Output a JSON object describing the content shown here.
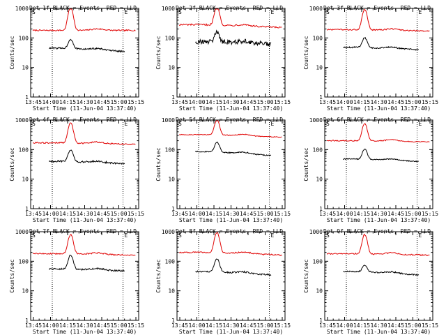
{
  "chart_data": [
    {
      "type": "line",
      "title": "Det 1f BLACK = Events, RED = LLD",
      "xlabel": "Start Time (11-Jun-04 13:37:40)",
      "ylabel": "Counts/sec",
      "yscale": "log",
      "ylim": [
        1,
        1000
      ],
      "xticks": [
        "13:45",
        "14:00",
        "14:15",
        "14:30",
        "14:45",
        "15:00",
        "15:15"
      ],
      "yticks": [
        "1",
        "10",
        "100",
        "1000"
      ],
      "markers": [
        "S",
        "E"
      ],
      "series": [
        {
          "name": "LLD",
          "color": "#e00000",
          "base": 180,
          "peak": 1050,
          "tail": 180,
          "noise": 0.05
        },
        {
          "name": "Events",
          "color": "#000000",
          "base": 45,
          "peak": 90,
          "tail": 32,
          "noise": 0.06
        }
      ]
    },
    {
      "type": "line",
      "title": "Det 2f BLACK = Events, RED = LLD",
      "xlabel": "Start Time (11-Jun-04 13:37:40)",
      "ylabel": "Counts/sec",
      "yscale": "log",
      "ylim": [
        1,
        1000
      ],
      "xticks": [
        "13:45",
        "14:00",
        "14:15",
        "14:30",
        "14:45",
        "15:00",
        "15:15"
      ],
      "yticks": [
        "1",
        "10",
        "100",
        "1000"
      ],
      "markers": [
        "S",
        "E"
      ],
      "series": [
        {
          "name": "LLD",
          "color": "#e00000",
          "base": 280,
          "peak": 1100,
          "tail": 220,
          "noise": 0.07
        },
        {
          "name": "Events",
          "color": "#000000",
          "base": 75,
          "peak": 160,
          "tail": 60,
          "noise": 0.18
        }
      ]
    },
    {
      "type": "line",
      "title": "Det 3f BLACK = Events, RED = LLD",
      "xlabel": "Start Time (11-Jun-04 13:37:40)",
      "ylabel": "Counts/sec",
      "yscale": "log",
      "ylim": [
        1,
        1000
      ],
      "xticks": [
        "13:45",
        "14:00",
        "14:15",
        "14:30",
        "14:45",
        "15:00",
        "15:15"
      ],
      "yticks": [
        "1",
        "10",
        "100",
        "1000"
      ],
      "markers": [
        "S",
        "E"
      ],
      "series": [
        {
          "name": "LLD",
          "color": "#e00000",
          "base": 190,
          "peak": 900,
          "tail": 170,
          "noise": 0.05
        },
        {
          "name": "Events",
          "color": "#000000",
          "base": 48,
          "peak": 100,
          "tail": 38,
          "noise": 0.05
        }
      ]
    },
    {
      "type": "line",
      "title": "Det 4f BLACK = Events, RED = LLD",
      "xlabel": "Start Time (11-Jun-04 13:37:40)",
      "ylabel": "Counts/sec",
      "yscale": "log",
      "ylim": [
        1,
        1000
      ],
      "xticks": [
        "13:45",
        "14:00",
        "14:15",
        "14:30",
        "14:45",
        "15:00",
        "15:15"
      ],
      "yticks": [
        "1",
        "10",
        "100",
        "1000"
      ],
      "markers": [
        "S",
        "E"
      ],
      "series": [
        {
          "name": "LLD",
          "color": "#e00000",
          "base": 170,
          "peak": 800,
          "tail": 150,
          "noise": 0.05
        },
        {
          "name": "Events",
          "color": "#000000",
          "base": 40,
          "peak": 95,
          "tail": 32,
          "noise": 0.07
        }
      ]
    },
    {
      "type": "line",
      "title": "Det 5f BLACK = Events, RED = LLD",
      "xlabel": "Start Time (11-Jun-04 13:37:40)",
      "ylabel": "Counts/sec",
      "yscale": "log",
      "ylim": [
        1,
        1000
      ],
      "xticks": [
        "13:45",
        "14:00",
        "14:15",
        "14:30",
        "14:45",
        "15:00",
        "15:15"
      ],
      "yticks": [
        "1",
        "10",
        "100",
        "1000"
      ],
      "markers": [
        "S",
        "E"
      ],
      "series": [
        {
          "name": "LLD",
          "color": "#e00000",
          "base": 320,
          "peak": 1000,
          "tail": 260,
          "noise": 0.03
        },
        {
          "name": "Events",
          "color": "#000000",
          "base": 85,
          "peak": 180,
          "tail": 58,
          "noise": 0.04
        }
      ]
    },
    {
      "type": "line",
      "title": "Det 6f BLACK = Events, RED = LLD",
      "xlabel": "Start Time (11-Jun-04 13:37:40)",
      "ylabel": "Counts/sec",
      "yscale": "log",
      "ylim": [
        1,
        1000
      ],
      "xticks": [
        "13:45",
        "14:00",
        "14:15",
        "14:30",
        "14:45",
        "15:00",
        "15:15"
      ],
      "yticks": [
        "1",
        "10",
        "100",
        "1000"
      ],
      "markers": [
        "S",
        "E"
      ],
      "series": [
        {
          "name": "LLD",
          "color": "#e00000",
          "base": 200,
          "peak": 750,
          "tail": 180,
          "noise": 0.04
        },
        {
          "name": "Events",
          "color": "#000000",
          "base": 48,
          "peak": 105,
          "tail": 38,
          "noise": 0.04
        }
      ]
    },
    {
      "type": "line",
      "title": "Det 7f BLACK = Events, RED = LLD",
      "xlabel": "Start Time (11-Jun-04 13:37:40)",
      "ylabel": "Counts/sec",
      "yscale": "log",
      "ylim": [
        1,
        1000
      ],
      "xticks": [
        "13:45",
        "14:00",
        "14:15",
        "14:30",
        "14:45",
        "15:00",
        "15:15"
      ],
      "yticks": [
        "1",
        "10",
        "100",
        "1000"
      ],
      "markers": [
        "S",
        "E"
      ],
      "series": [
        {
          "name": "LLD",
          "color": "#e00000",
          "base": 180,
          "peak": 800,
          "tail": 160,
          "noise": 0.05
        },
        {
          "name": "Events",
          "color": "#000000",
          "base": 55,
          "peak": 160,
          "tail": 45,
          "noise": 0.06
        }
      ]
    },
    {
      "type": "line",
      "title": "Det 8f BLACK = Events, RED = LLD",
      "xlabel": "Start Time (11-Jun-04 13:37:40)",
      "ylabel": "Counts/sec",
      "yscale": "log",
      "ylim": [
        1,
        1000
      ],
      "xticks": [
        "13:45",
        "14:00",
        "14:15",
        "14:30",
        "14:45",
        "15:00",
        "15:15"
      ],
      "yticks": [
        "1",
        "10",
        "100",
        "1000"
      ],
      "markers": [
        "S",
        "E"
      ],
      "series": [
        {
          "name": "LLD",
          "color": "#e00000",
          "base": 200,
          "peak": 950,
          "tail": 160,
          "noise": 0.05
        },
        {
          "name": "Events",
          "color": "#000000",
          "base": 45,
          "peak": 120,
          "tail": 32,
          "noise": 0.06
        }
      ]
    },
    {
      "type": "line",
      "title": "Det 9f BLACK = Events, RED = LLD",
      "xlabel": "Start Time (11-Jun-04 13:37:40)",
      "ylabel": "Counts/sec",
      "yscale": "log",
      "ylim": [
        1,
        1000
      ],
      "xticks": [
        "13:45",
        "14:00",
        "14:15",
        "14:30",
        "14:45",
        "15:00",
        "15:15"
      ],
      "yticks": [
        "1",
        "10",
        "100",
        "1000"
      ],
      "markers": [
        "S",
        "E"
      ],
      "series": [
        {
          "name": "LLD",
          "color": "#e00000",
          "base": 180,
          "peak": 800,
          "tail": 160,
          "noise": 0.05
        },
        {
          "name": "Events",
          "color": "#000000",
          "base": 45,
          "peak": 75,
          "tail": 32,
          "noise": 0.05
        }
      ]
    }
  ]
}
